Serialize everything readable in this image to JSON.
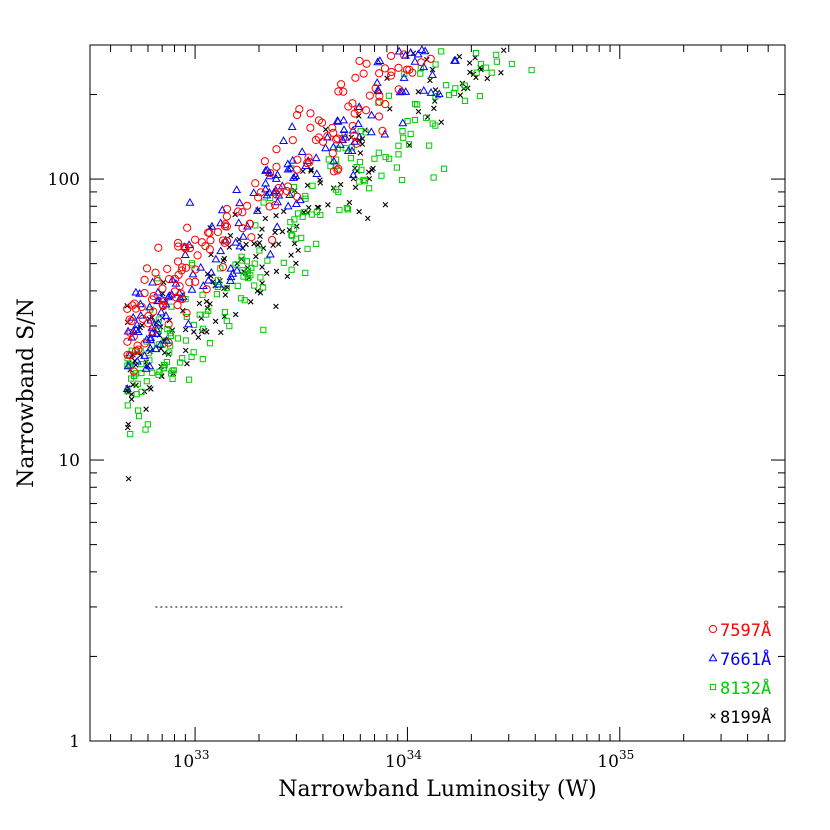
{
  "chart_data": {
    "type": "scatter",
    "title": "",
    "xlabel": "Narrowband Luminosity (W)",
    "ylabel": "Narrowband S/N",
    "x_scale": "log",
    "y_scale": "log",
    "xlim": [
      3.2e+32,
      6e+35
    ],
    "ylim": [
      1,
      300
    ],
    "x_ticks": [
      {
        "value": 1e+33,
        "base": "10",
        "exp": "33"
      },
      {
        "value": 1e+34,
        "base": "10",
        "exp": "34"
      },
      {
        "value": 1e+35,
        "base": "10",
        "exp": "35"
      }
    ],
    "y_ticks": [
      {
        "value": 1,
        "label": "1"
      },
      {
        "value": 10,
        "label": "10"
      },
      {
        "value": 100,
        "label": "100"
      }
    ],
    "threshold_line": {
      "y": 3,
      "x_range": [
        6.5e+32,
        5e+33
      ],
      "style": "dotted"
    },
    "legend_position": "bottom-right",
    "series": [
      {
        "name": "7597Å",
        "marker": "circle",
        "color": "#ff0000",
        "trend": {
          "slope": 0.73,
          "intercept_log10": -22.4,
          "scatter_dex": 0.09
        }
      },
      {
        "name": "7661Å",
        "marker": "triangle",
        "color": "#0000ff",
        "trend": {
          "slope": 0.73,
          "intercept_log10": -22.44,
          "scatter_dex": 0.09
        }
      },
      {
        "name": "8132Å",
        "marker": "square",
        "color": "#00cc00",
        "trend": {
          "slope": 0.73,
          "intercept_log10": -22.62,
          "scatter_dex": 0.1
        }
      },
      {
        "name": "8199Å",
        "marker": "cross",
        "color": "#000000",
        "trend": {
          "slope": 0.73,
          "intercept_log10": -22.58,
          "scatter_dex": 0.1
        }
      }
    ]
  }
}
